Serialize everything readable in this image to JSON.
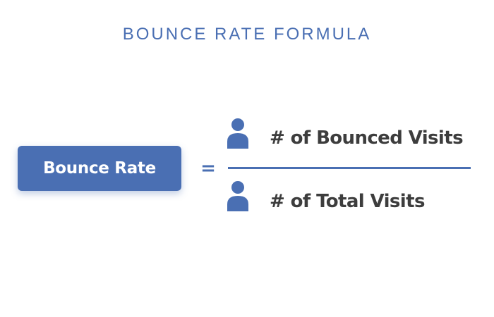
{
  "title": "BOUNCE RATE FORMULA",
  "formula": {
    "label": "Bounce Rate",
    "equals": "=",
    "numerator": {
      "icon": "person-icon",
      "text": "# of Bounced Visits"
    },
    "denominator": {
      "icon": "person-icon",
      "text": "# of Total Visits"
    }
  },
  "colors": {
    "accent": "#4a6fb3",
    "text_dark": "#3d3d3d",
    "background": "#ffffff"
  }
}
